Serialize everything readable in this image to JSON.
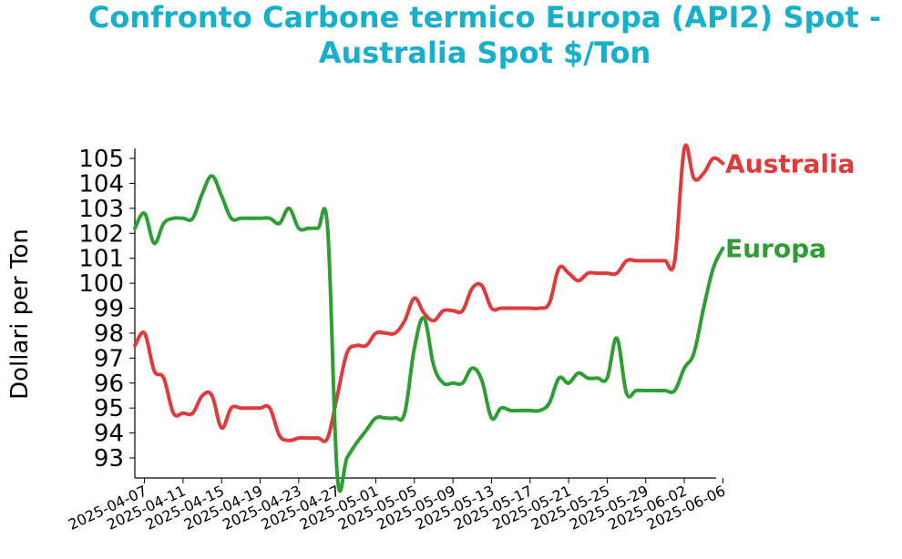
{
  "chart_data": {
    "type": "line",
    "title_line1": "Confronto Carbone termico Europa (API2) Spot -",
    "title_line2": "Australia Spot $/Ton",
    "xlabel": "",
    "ylabel": "Dollari per Ton",
    "ylim": [
      92.2,
      105.4
    ],
    "yticks": [
      "93",
      "94",
      "95",
      "96",
      "97",
      "98",
      "99",
      "100",
      "101",
      "102",
      "103",
      "104",
      "105"
    ],
    "xticks": [
      "2025-04-07",
      "2025-04-11",
      "2025-04-15",
      "2025-04-19",
      "2025-04-23",
      "2025-04-27",
      "2025-05-01",
      "2025-05-05",
      "2025-05-09",
      "2025-05-13",
      "2025-05-17",
      "2025-05-21",
      "2025-05-25",
      "2025-05-29",
      "2025-06-02",
      "2025-06-06"
    ],
    "grid": false,
    "colors": {
      "title": "#17b0cc",
      "australia": "#e03a3a",
      "europa": "#2e9e34"
    },
    "series": [
      {
        "name": "Australia",
        "points": [
          [
            "2025-04-06",
            97.5
          ],
          [
            "2025-04-07",
            98.0
          ],
          [
            "2025-04-08",
            96.5
          ],
          [
            "2025-04-09",
            96.2
          ],
          [
            "2025-04-10",
            94.8
          ],
          [
            "2025-04-11",
            94.8
          ],
          [
            "2025-04-12",
            94.8
          ],
          [
            "2025-04-13",
            95.5
          ],
          [
            "2025-04-14",
            95.5
          ],
          [
            "2025-04-15",
            94.2
          ],
          [
            "2025-04-16",
            95.0
          ],
          [
            "2025-04-17",
            95.0
          ],
          [
            "2025-04-18",
            95.0
          ],
          [
            "2025-04-19",
            95.0
          ],
          [
            "2025-04-20",
            95.0
          ],
          [
            "2025-04-21",
            93.9
          ],
          [
            "2025-04-22",
            93.7
          ],
          [
            "2025-04-23",
            93.8
          ],
          [
            "2025-04-24",
            93.8
          ],
          [
            "2025-04-25",
            93.8
          ],
          [
            "2025-04-26",
            93.8
          ],
          [
            "2025-04-27",
            95.5
          ],
          [
            "2025-04-28",
            97.2
          ],
          [
            "2025-04-29",
            97.5
          ],
          [
            "2025-04-30",
            97.5
          ],
          [
            "2025-05-01",
            98.0
          ],
          [
            "2025-05-02",
            98.0
          ],
          [
            "2025-05-03",
            98.0
          ],
          [
            "2025-05-04",
            98.5
          ],
          [
            "2025-05-05",
            99.4
          ],
          [
            "2025-05-06",
            98.8
          ],
          [
            "2025-05-07",
            98.5
          ],
          [
            "2025-05-08",
            98.9
          ],
          [
            "2025-05-09",
            98.9
          ],
          [
            "2025-05-10",
            98.9
          ],
          [
            "2025-05-11",
            99.8
          ],
          [
            "2025-05-12",
            99.9
          ],
          [
            "2025-05-13",
            99.0
          ],
          [
            "2025-05-14",
            99.0
          ],
          [
            "2025-05-15",
            99.0
          ],
          [
            "2025-05-16",
            99.0
          ],
          [
            "2025-05-17",
            99.0
          ],
          [
            "2025-05-18",
            99.0
          ],
          [
            "2025-05-19",
            99.2
          ],
          [
            "2025-05-20",
            100.6
          ],
          [
            "2025-05-21",
            100.4
          ],
          [
            "2025-05-22",
            100.1
          ],
          [
            "2025-05-23",
            100.4
          ],
          [
            "2025-05-24",
            100.4
          ],
          [
            "2025-05-25",
            100.4
          ],
          [
            "2025-05-26",
            100.4
          ],
          [
            "2025-05-27",
            100.9
          ],
          [
            "2025-05-28",
            100.9
          ],
          [
            "2025-05-29",
            100.9
          ],
          [
            "2025-05-30",
            100.9
          ],
          [
            "2025-05-31",
            100.9
          ],
          [
            "2025-06-01",
            100.9
          ],
          [
            "2025-06-02",
            105.4
          ],
          [
            "2025-06-03",
            104.2
          ],
          [
            "2025-06-04",
            104.4
          ],
          [
            "2025-06-05",
            105.0
          ],
          [
            "2025-06-06",
            104.8
          ]
        ]
      },
      {
        "name": "Europa",
        "points": [
          [
            "2025-04-06",
            102.2
          ],
          [
            "2025-04-07",
            102.8
          ],
          [
            "2025-04-08",
            101.6
          ],
          [
            "2025-04-09",
            102.4
          ],
          [
            "2025-04-10",
            102.6
          ],
          [
            "2025-04-11",
            102.6
          ],
          [
            "2025-04-12",
            102.6
          ],
          [
            "2025-04-13",
            103.6
          ],
          [
            "2025-04-14",
            104.3
          ],
          [
            "2025-04-15",
            103.5
          ],
          [
            "2025-04-16",
            102.6
          ],
          [
            "2025-04-17",
            102.6
          ],
          [
            "2025-04-18",
            102.6
          ],
          [
            "2025-04-19",
            102.6
          ],
          [
            "2025-04-20",
            102.6
          ],
          [
            "2025-04-21",
            102.4
          ],
          [
            "2025-04-22",
            103.0
          ],
          [
            "2025-04-23",
            102.2
          ],
          [
            "2025-04-24",
            102.2
          ],
          [
            "2025-04-25",
            102.2
          ],
          [
            "2025-04-26",
            102.2
          ],
          [
            "2025-04-27",
            92.3
          ],
          [
            "2025-04-28",
            93.0
          ],
          [
            "2025-04-29",
            93.6
          ],
          [
            "2025-04-30",
            94.1
          ],
          [
            "2025-05-01",
            94.6
          ],
          [
            "2025-05-02",
            94.6
          ],
          [
            "2025-05-03",
            94.6
          ],
          [
            "2025-05-04",
            94.8
          ],
          [
            "2025-05-05",
            97.4
          ],
          [
            "2025-05-06",
            98.6
          ],
          [
            "2025-05-07",
            96.7
          ],
          [
            "2025-05-08",
            96.0
          ],
          [
            "2025-05-09",
            96.0
          ],
          [
            "2025-05-10",
            96.0
          ],
          [
            "2025-05-11",
            96.6
          ],
          [
            "2025-05-12",
            96.1
          ],
          [
            "2025-05-13",
            94.6
          ],
          [
            "2025-05-14",
            95.0
          ],
          [
            "2025-05-15",
            94.9
          ],
          [
            "2025-05-16",
            94.9
          ],
          [
            "2025-05-17",
            94.9
          ],
          [
            "2025-05-18",
            94.9
          ],
          [
            "2025-05-19",
            95.2
          ],
          [
            "2025-05-20",
            96.2
          ],
          [
            "2025-05-21",
            96.0
          ],
          [
            "2025-05-22",
            96.4
          ],
          [
            "2025-05-23",
            96.2
          ],
          [
            "2025-05-24",
            96.2
          ],
          [
            "2025-05-25",
            96.2
          ],
          [
            "2025-05-26",
            97.8
          ],
          [
            "2025-05-27",
            95.6
          ],
          [
            "2025-05-28",
            95.7
          ],
          [
            "2025-05-29",
            95.7
          ],
          [
            "2025-05-30",
            95.7
          ],
          [
            "2025-05-31",
            95.7
          ],
          [
            "2025-06-01",
            95.7
          ],
          [
            "2025-06-02",
            96.6
          ],
          [
            "2025-06-03",
            97.2
          ],
          [
            "2025-06-04",
            99.0
          ],
          [
            "2025-06-05",
            100.6
          ],
          [
            "2025-06-06",
            101.4
          ]
        ]
      }
    ]
  }
}
